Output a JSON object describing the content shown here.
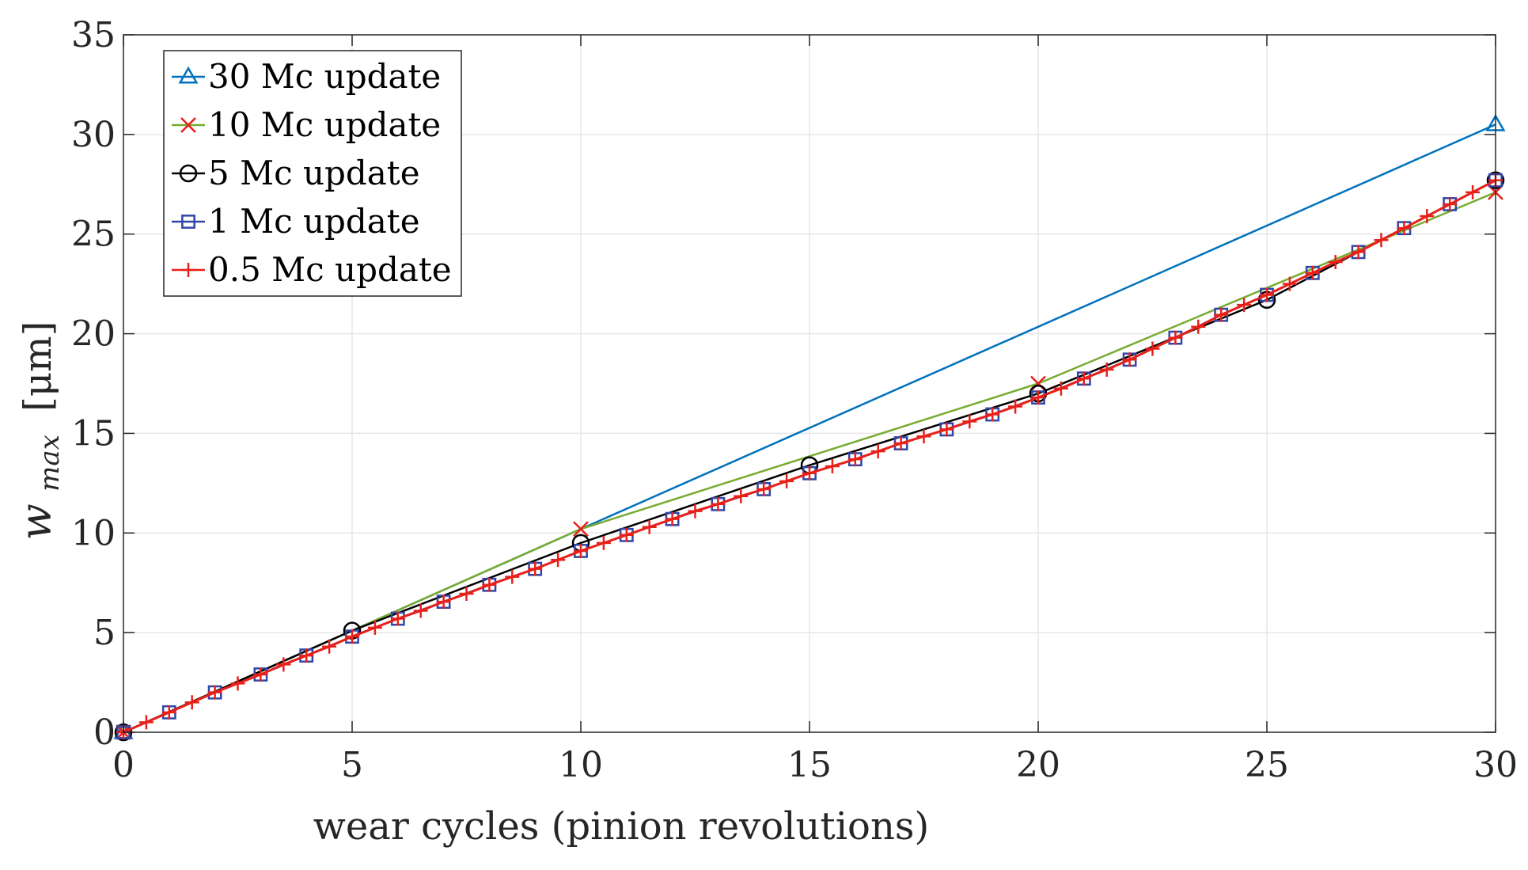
{
  "chart_data": {
    "type": "line",
    "title": "",
    "xlabel": "wear cycles (pinion revolutions)",
    "ylabel": "w_max [μm]",
    "ylabel_parts": {
      "symbol": "w",
      "subscript": "max",
      "unit": "[μm]"
    },
    "xlim": [
      0,
      30
    ],
    "ylim": [
      0,
      35
    ],
    "xticks": [
      0,
      5,
      10,
      15,
      20,
      25,
      30
    ],
    "yticks": [
      0,
      5,
      10,
      15,
      20,
      25,
      30,
      35
    ],
    "xtick_labels": [
      "0",
      "5",
      "10",
      "15",
      "20",
      "25",
      "30"
    ],
    "ytick_labels": [
      "0",
      "5",
      "10",
      "15",
      "20",
      "25",
      "30",
      "35"
    ],
    "grid": true,
    "legend_position": "top-left",
    "series": [
      {
        "name": "30 Mc update",
        "color": "#0072BD",
        "marker": "triangle",
        "x": [
          0,
          10,
          30
        ],
        "y": [
          0,
          10.2,
          30.5
        ],
        "marker_indices": [
          0,
          2
        ]
      },
      {
        "name": "10 Mc update",
        "color": "#77AC30",
        "marker_color": "#E8201A",
        "marker": "x",
        "x": [
          0,
          10,
          20,
          30
        ],
        "y": [
          0,
          10.2,
          17.5,
          27.1
        ],
        "marker_indices": [
          0,
          1,
          2,
          3
        ]
      },
      {
        "name": "5 Mc update",
        "color": "#000000",
        "marker": "circle",
        "x": [
          0,
          5,
          10,
          15,
          20,
          25,
          30
        ],
        "y": [
          0,
          5.1,
          9.5,
          13.4,
          17.0,
          21.7,
          27.7
        ]
      },
      {
        "name": "1 Mc update",
        "color": "#3346A6",
        "marker": "square",
        "x": [
          0,
          1,
          2,
          3,
          4,
          5,
          6,
          7,
          8,
          9,
          10,
          11,
          12,
          13,
          14,
          15,
          16,
          17,
          18,
          19,
          20,
          21,
          22,
          23,
          24,
          25,
          26,
          27,
          28,
          29,
          30
        ],
        "y": [
          0,
          1.0,
          2.0,
          2.9,
          3.85,
          4.8,
          5.7,
          6.55,
          7.4,
          8.2,
          9.1,
          9.9,
          10.7,
          11.45,
          12.2,
          13.0,
          13.7,
          14.5,
          15.2,
          15.95,
          16.8,
          17.75,
          18.7,
          19.8,
          20.95,
          21.95,
          23.05,
          24.1,
          25.3,
          26.5,
          27.7
        ]
      },
      {
        "name": "0.5 Mc update",
        "color": "#E8201A",
        "marker": "plus",
        "x": [
          0,
          0.5,
          1,
          1.5,
          2,
          2.5,
          3,
          3.5,
          4,
          4.5,
          5,
          5.5,
          6,
          6.5,
          7,
          7.5,
          8,
          8.5,
          9,
          9.5,
          10,
          10.5,
          11,
          11.5,
          12,
          12.5,
          13,
          13.5,
          14,
          14.5,
          15,
          15.5,
          16,
          16.5,
          17,
          17.5,
          18,
          18.5,
          19,
          19.5,
          20,
          20.5,
          21,
          21.5,
          22,
          22.5,
          23,
          23.5,
          24,
          24.5,
          25,
          25.5,
          26,
          26.5,
          27,
          27.5,
          28,
          28.5,
          29,
          29.5,
          30
        ],
        "y": [
          0,
          0.5,
          1.0,
          1.5,
          2.0,
          2.45,
          2.9,
          3.4,
          3.85,
          4.3,
          4.8,
          5.25,
          5.7,
          6.1,
          6.55,
          6.95,
          7.4,
          7.8,
          8.2,
          8.65,
          9.1,
          9.5,
          9.9,
          10.3,
          10.7,
          11.1,
          11.45,
          11.85,
          12.2,
          12.6,
          13.0,
          13.35,
          13.7,
          14.1,
          14.5,
          14.85,
          15.2,
          15.6,
          15.95,
          16.35,
          16.8,
          17.25,
          17.75,
          18.2,
          18.7,
          19.25,
          19.8,
          20.35,
          20.95,
          21.45,
          21.95,
          22.5,
          23.05,
          23.6,
          24.1,
          24.7,
          25.3,
          25.9,
          26.5,
          27.1,
          27.7
        ]
      }
    ]
  }
}
